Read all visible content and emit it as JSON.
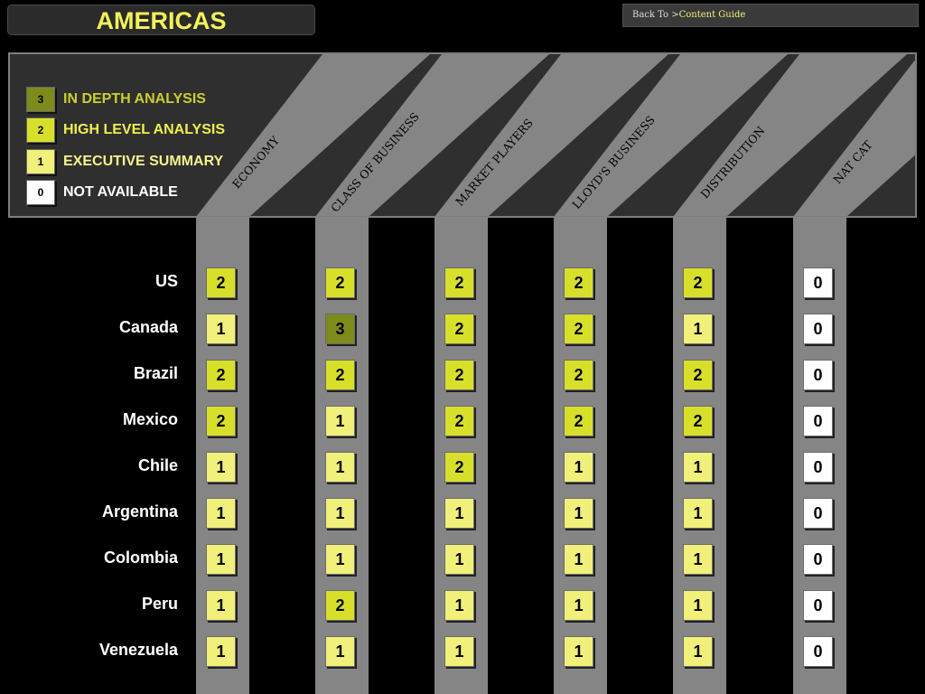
{
  "header": {
    "title": "AMERICAS"
  },
  "nav": {
    "back_prefix": "Back To >",
    "back_link": "Content Guide"
  },
  "legend": [
    {
      "level": "3",
      "label": "IN DEPTH ANALYSIS"
    },
    {
      "level": "2",
      "label": "HIGH LEVEL ANALYSIS"
    },
    {
      "level": "1",
      "label": "EXECUTIVE SUMMARY"
    },
    {
      "level": "0",
      "label": "NOT AVAILABLE"
    }
  ],
  "columns": [
    "ECONOMY",
    "CLASS OF BUSINESS",
    "MARKET PLAYERS",
    "LLOYD'S BUSINESS",
    "DISTRIBUTION",
    "NAT CAT"
  ],
  "rows": [
    {
      "country": "US",
      "values": [
        "2",
        "2",
        "2",
        "2",
        "2",
        "0"
      ]
    },
    {
      "country": "Canada",
      "values": [
        "1",
        "3",
        "2",
        "2",
        "1",
        "0"
      ]
    },
    {
      "country": "Brazil",
      "values": [
        "2",
        "2",
        "2",
        "2",
        "2",
        "0"
      ]
    },
    {
      "country": "Mexico",
      "values": [
        "2",
        "1",
        "2",
        "2",
        "2",
        "0"
      ]
    },
    {
      "country": "Chile",
      "values": [
        "1",
        "1",
        "2",
        "1",
        "1",
        "0"
      ]
    },
    {
      "country": "Argentina",
      "values": [
        "1",
        "1",
        "1",
        "1",
        "1",
        "0"
      ]
    },
    {
      "country": "Colombia",
      "values": [
        "1",
        "1",
        "1",
        "1",
        "1",
        "0"
      ]
    },
    {
      "country": "Peru",
      "values": [
        "1",
        "2",
        "1",
        "1",
        "1",
        "0"
      ]
    },
    {
      "country": "Venezuela",
      "values": [
        "1",
        "1",
        "1",
        "1",
        "1",
        "0"
      ]
    }
  ],
  "colors": {
    "level_3": "#7d8a1c",
    "level_2": "#d8df2a",
    "level_1": "#f0f07a",
    "level_0": "#ffffff",
    "label_3": "#c9cf2e",
    "label_2": "#eef04e",
    "label_1": "#f3f38e",
    "label_0": "#ffffff"
  }
}
